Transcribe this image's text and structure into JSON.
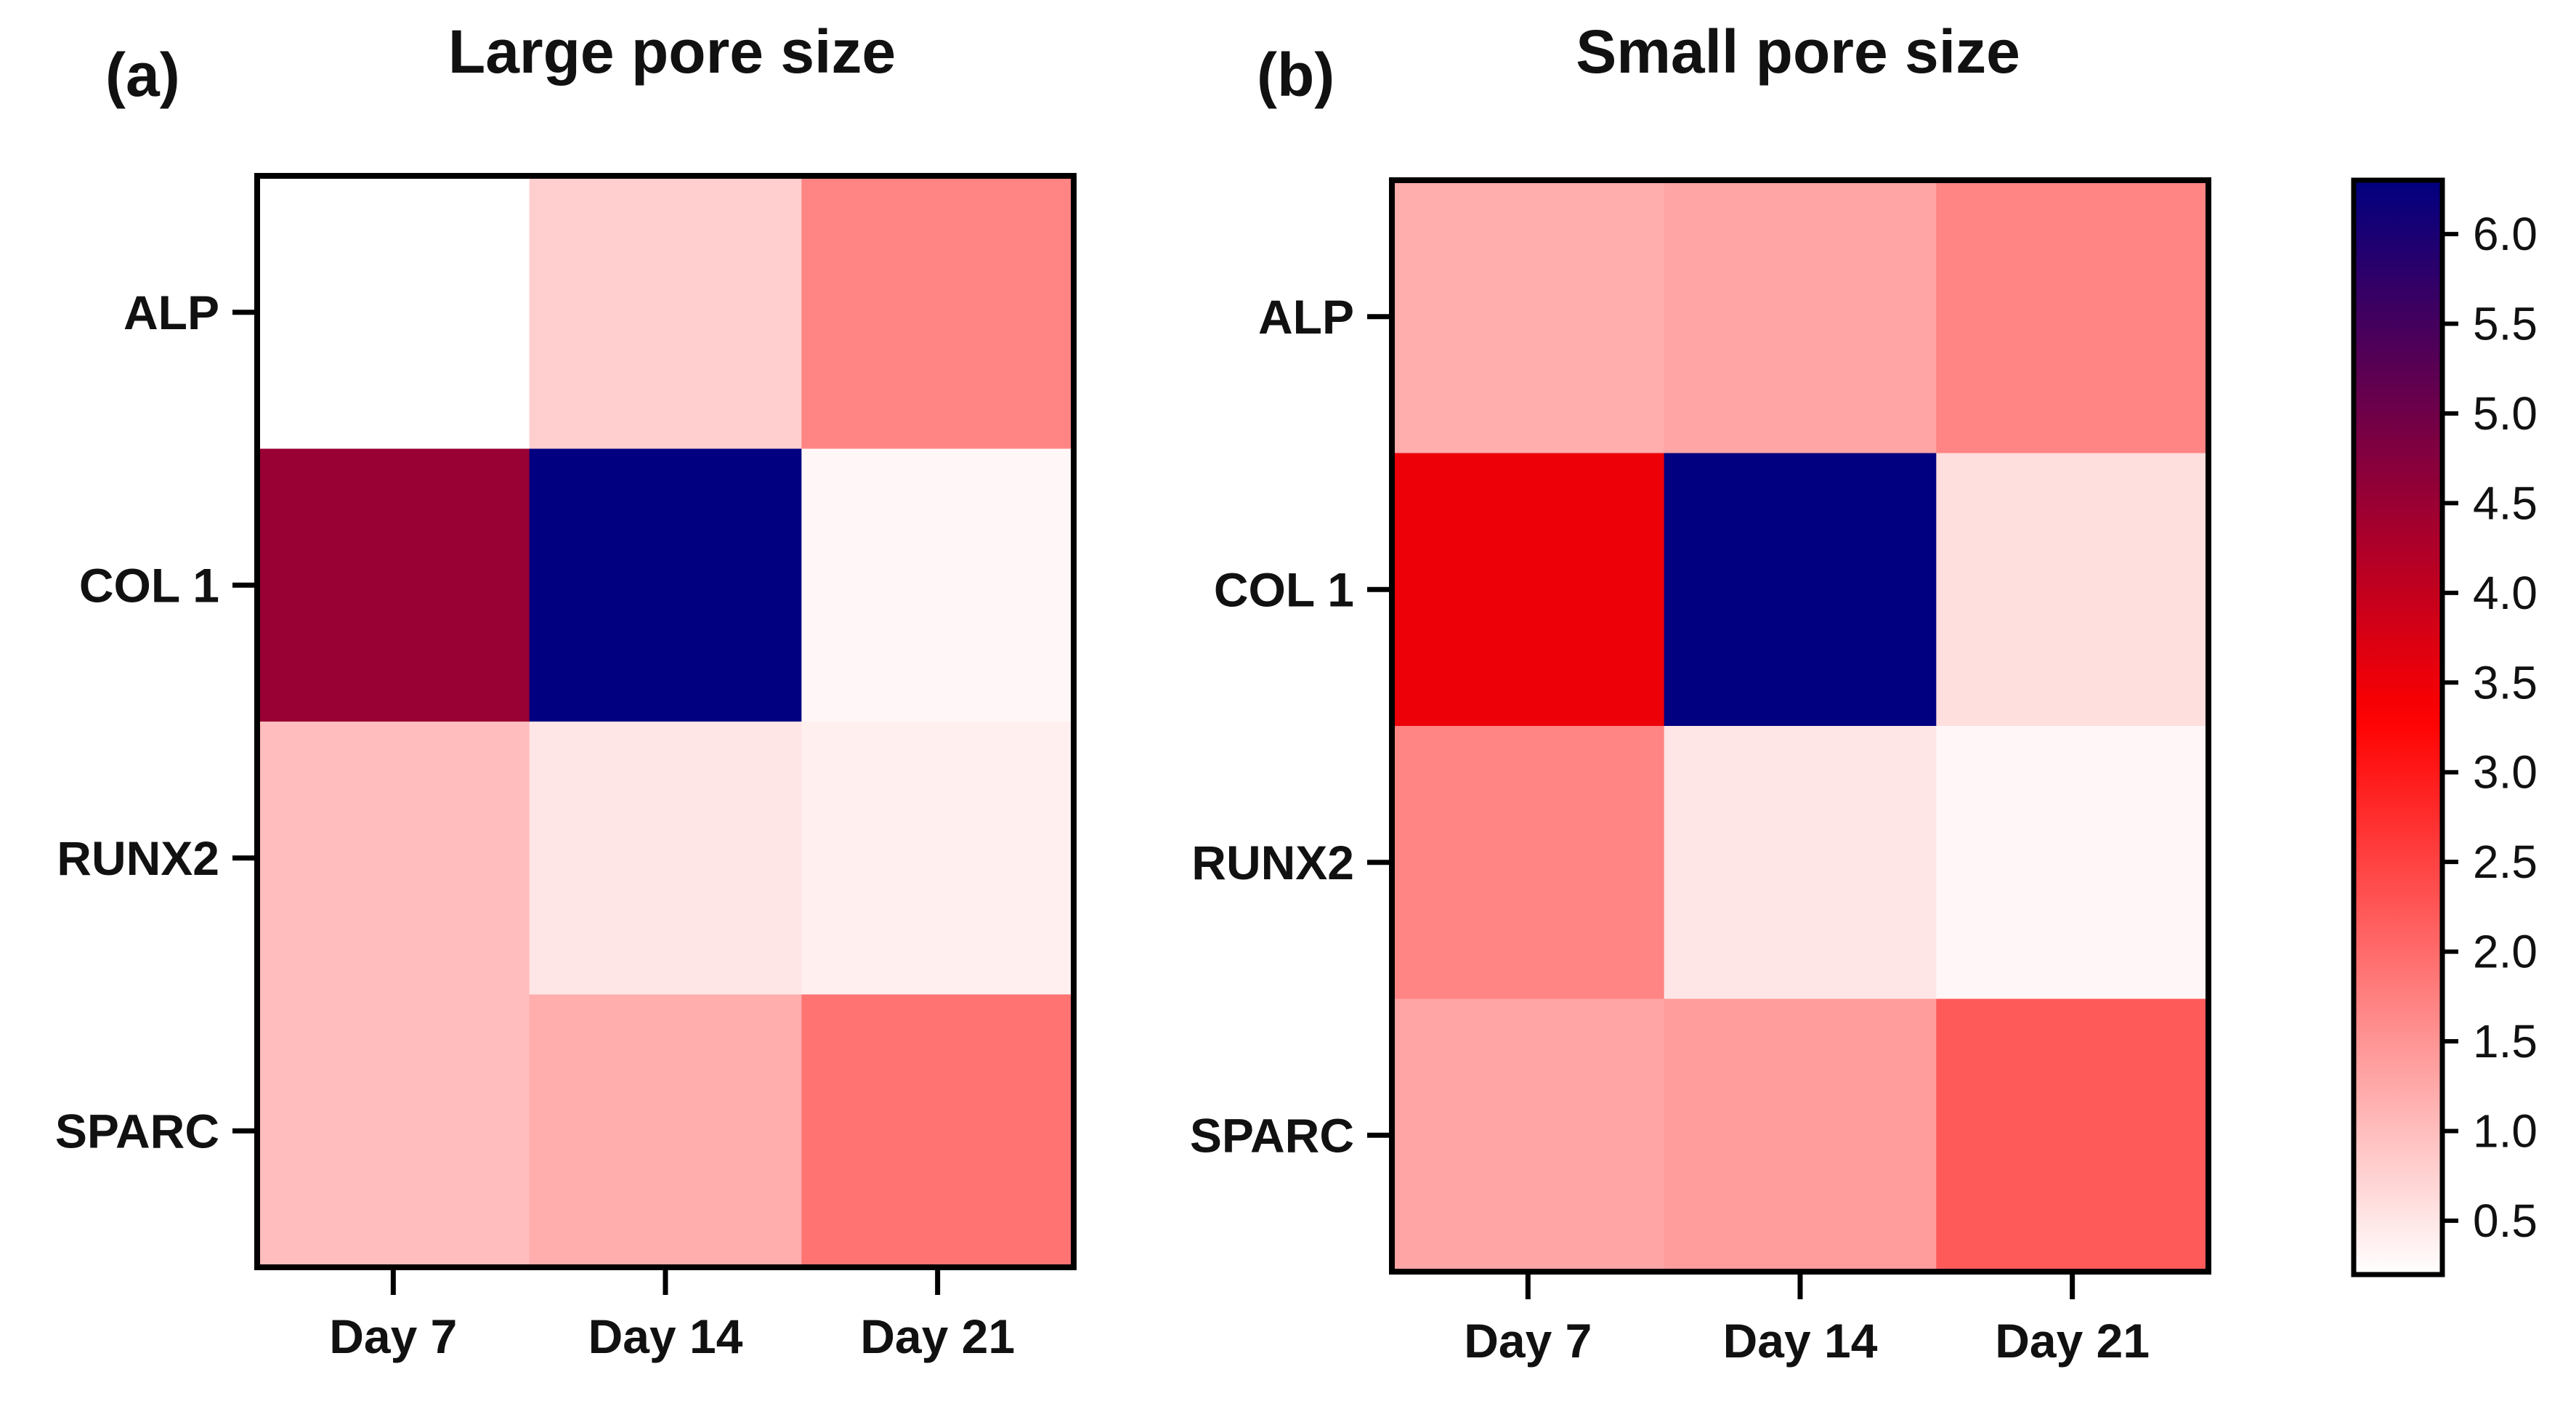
{
  "chart_data": [
    {
      "type": "heatmap",
      "panel_label": "(a)",
      "title": "Large pore size",
      "rows": [
        "ALP",
        "COL 1",
        "RUNX2",
        "SPARC"
      ],
      "columns": [
        "Day 7",
        "Day 14",
        "Day 21"
      ],
      "values": [
        [
          0.2,
          0.8,
          1.7
        ],
        [
          4.5,
          6.3,
          0.3
        ],
        [
          1.0,
          0.5,
          0.4
        ],
        [
          1.0,
          1.2,
          1.9
        ]
      ]
    },
    {
      "type": "heatmap",
      "panel_label": "(b)",
      "title": "Small pore size",
      "rows": [
        "ALP",
        "COL 1",
        "RUNX2",
        "SPARC"
      ],
      "columns": [
        "Day 7",
        "Day 14",
        "Day 21"
      ],
      "values": [
        [
          1.2,
          1.3,
          1.7
        ],
        [
          3.5,
          6.3,
          0.6
        ],
        [
          1.7,
          0.5,
          0.3
        ],
        [
          1.3,
          1.4,
          2.2
        ]
      ]
    }
  ],
  "colorbar": {
    "min": 0.2,
    "max": 6.3,
    "ticks": [
      "0.5",
      "1.0",
      "1.5",
      "2.0",
      "2.5",
      "3.0",
      "3.5",
      "4.0",
      "4.5",
      "5.0",
      "5.5",
      "6.0"
    ],
    "colors": {
      "low": "#ffffff",
      "mid": "#ff0000",
      "mid_value": 3.3,
      "high": "#000080"
    }
  }
}
